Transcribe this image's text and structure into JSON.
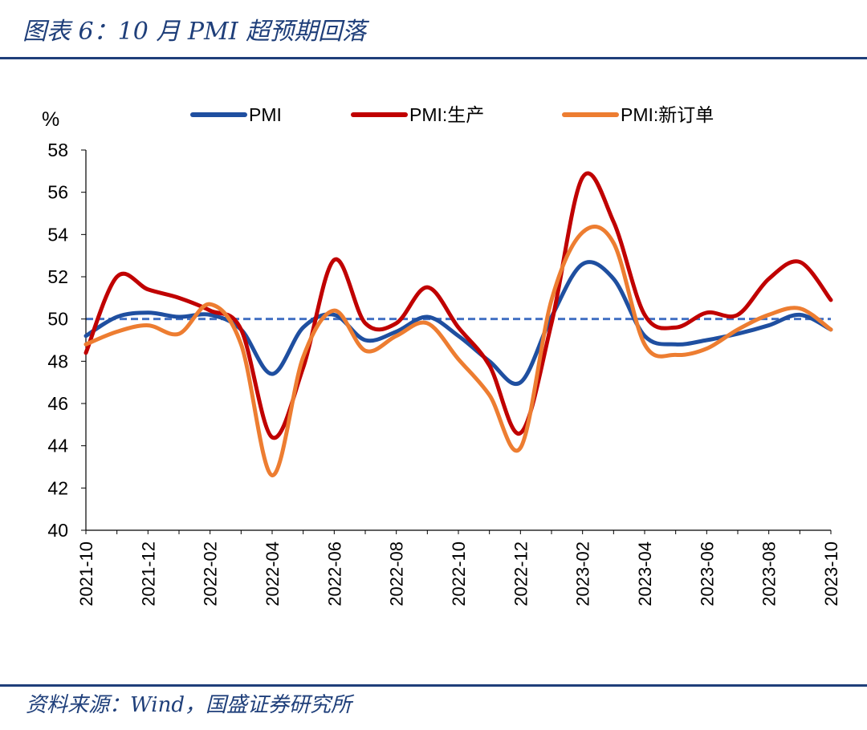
{
  "header": {
    "title": "图表 6：10 月 PMI 超预期回落"
  },
  "footer": {
    "source": "资料来源：Wind，国盛证券研究所"
  },
  "colors": {
    "pmi": "#1f4fa0",
    "production": "#c00000",
    "new_orders": "#ed7d31",
    "reference": "#4472c4",
    "rule": "#1f3f7a",
    "axis": "#000000"
  },
  "chart_data": {
    "type": "line",
    "ylabel": "%",
    "ylim": [
      40,
      58
    ],
    "yticks": [
      40,
      42,
      44,
      46,
      48,
      50,
      52,
      54,
      56,
      58
    ],
    "x": [
      "2021-10",
      "2021-11",
      "2021-12",
      "2022-01",
      "2022-02",
      "2022-03",
      "2022-04",
      "2022-05",
      "2022-06",
      "2022-07",
      "2022-08",
      "2022-09",
      "2022-10",
      "2022-11",
      "2022-12",
      "2023-01",
      "2023-02",
      "2023-03",
      "2023-04",
      "2023-05",
      "2023-06",
      "2023-07",
      "2023-08",
      "2023-09",
      "2023-10"
    ],
    "xtick_labels": [
      "2021-10",
      "2021-12",
      "2022-02",
      "2022-04",
      "2022-06",
      "2022-08",
      "2022-10",
      "2022-12",
      "2023-02",
      "2023-04",
      "2023-06",
      "2023-08",
      "2023-10"
    ],
    "reference_line": {
      "y": 50,
      "style": "dashed"
    },
    "legend_position": "top",
    "series": [
      {
        "name": "PMI",
        "color": "#1f4fa0",
        "values": [
          49.2,
          50.1,
          50.3,
          50.1,
          50.2,
          49.5,
          47.4,
          49.6,
          50.2,
          49.0,
          49.4,
          50.1,
          49.2,
          48.0,
          47.0,
          50.1,
          52.6,
          51.9,
          49.2,
          48.8,
          49.0,
          49.3,
          49.7,
          50.2,
          49.5
        ]
      },
      {
        "name": "PMI:生产",
        "color": "#c00000",
        "values": [
          48.4,
          52.0,
          51.4,
          51.0,
          50.4,
          49.5,
          44.4,
          47.7,
          52.8,
          49.8,
          49.8,
          51.5,
          49.6,
          47.8,
          44.6,
          49.8,
          56.7,
          54.6,
          50.2,
          49.6,
          50.3,
          50.2,
          51.9,
          52.7,
          50.9
        ]
      },
      {
        "name": "PMI:新订单",
        "color": "#ed7d31",
        "values": [
          48.8,
          49.4,
          49.7,
          49.3,
          50.7,
          48.8,
          42.6,
          48.2,
          50.4,
          48.5,
          49.2,
          49.8,
          48.1,
          46.4,
          43.9,
          50.9,
          54.1,
          53.6,
          48.8,
          48.3,
          48.6,
          49.5,
          50.2,
          50.5,
          49.5
        ]
      }
    ]
  }
}
